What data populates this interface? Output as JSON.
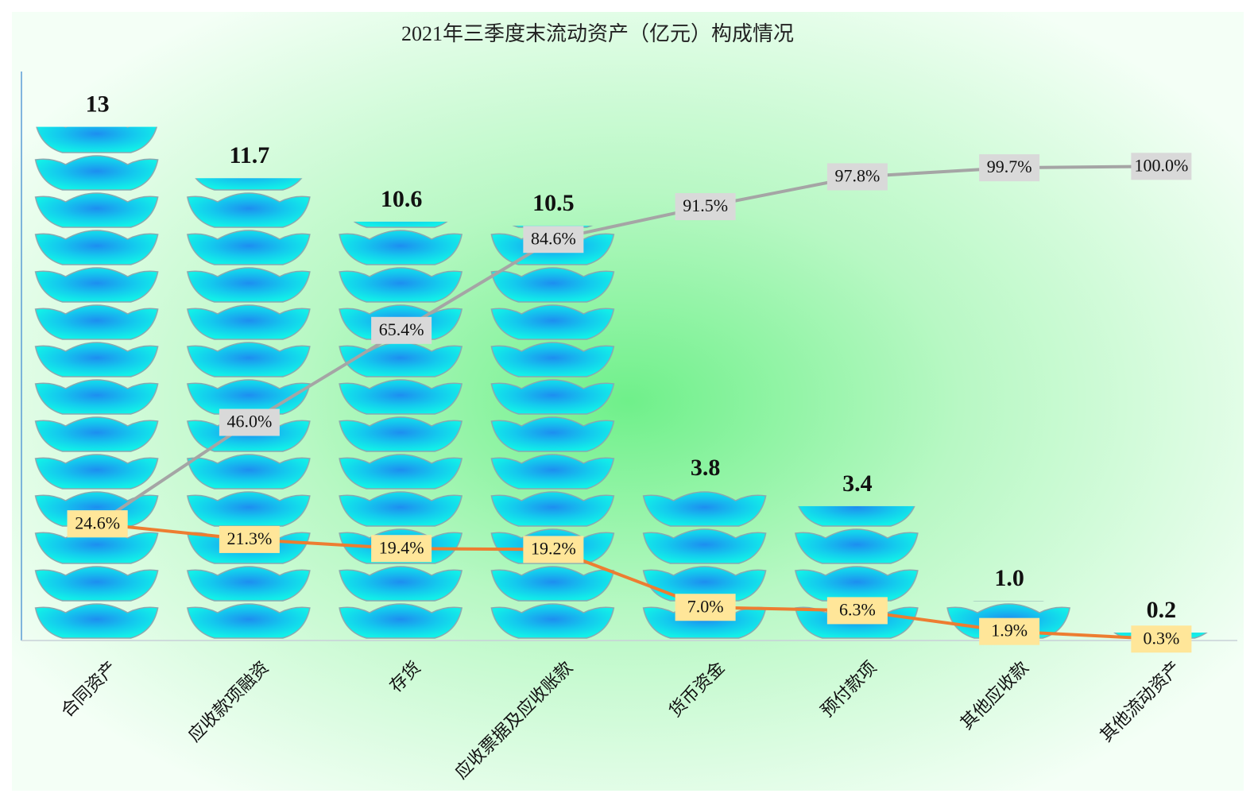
{
  "chart_data": {
    "type": "bar",
    "title": "2021年三季度末流动资产（亿元）构成情况",
    "categories": [
      "合同资产",
      "应收款项融资",
      "存货",
      "应收票据及应收账款",
      "货币资金",
      "预付款项",
      "其他应收款",
      "其他流动资产"
    ],
    "values": [
      13,
      11.7,
      10.6,
      10.5,
      3.8,
      3.4,
      1.0,
      0.2
    ],
    "value_labels": [
      "13",
      "11.7",
      "10.6",
      "10.5",
      "3.8",
      "3.4",
      "1.0",
      "0.2"
    ],
    "color": "#1ec8f0",
    "ylim": [
      0,
      14.4
    ],
    "y2lim": [
      0,
      120
    ],
    "lines": [
      {
        "type": "line",
        "axis": "y2",
        "color": "#a5a5a5",
        "label_color": "#d9d9d9",
        "values": [
          24.6,
          46.0,
          65.4,
          84.6,
          91.5,
          97.8,
          99.7,
          100.0
        ],
        "value_labels": [
          "24.6%",
          "46.0%",
          "65.4%",
          "84.6%",
          "91.5%",
          "97.8%",
          "99.7%",
          "100.0%"
        ]
      },
      {
        "type": "line",
        "axis": "y2",
        "color": "#ed7d31",
        "label_color": "#ffe699",
        "values": [
          24.6,
          21.3,
          19.4,
          19.2,
          7.0,
          6.3,
          1.9,
          0.3
        ],
        "value_labels": [
          "24.6%",
          "21.3%",
          "19.4%",
          "19.2%",
          "7.0%",
          "6.3%",
          "1.9%",
          "0.3%"
        ]
      }
    ]
  }
}
